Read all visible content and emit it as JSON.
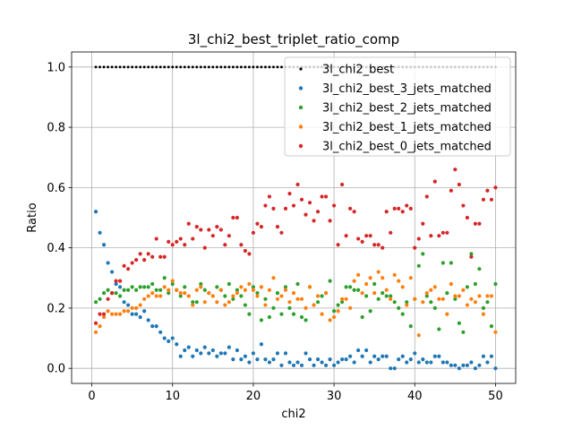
{
  "chart_data": {
    "type": "scatter",
    "title": "3l_chi2_best_triplet_ratio_comp",
    "xlabel": "chi2",
    "ylabel": "Ratio",
    "xlim": [
      -2.5,
      52.5
    ],
    "ylim": [
      -0.05,
      1.05
    ],
    "xticks": [
      0,
      10,
      20,
      30,
      40,
      50
    ],
    "yticks": [
      0.0,
      0.2,
      0.4,
      0.6,
      0.8,
      1.0
    ],
    "xtick_labels": [
      "0",
      "10",
      "20",
      "30",
      "40",
      "50"
    ],
    "ytick_labels": [
      "0.0",
      "0.2",
      "0.4",
      "0.6",
      "0.8",
      "1.0"
    ],
    "grid": true,
    "legend_position": "top-right",
    "x_start": 0.5,
    "x_step": 0.5,
    "series": [
      {
        "name": "3l_chi2_best",
        "color": "#000000",
        "values": [
          1,
          1,
          1,
          1,
          1,
          1,
          1,
          1,
          1,
          1,
          1,
          1,
          1,
          1,
          1,
          1,
          1,
          1,
          1,
          1,
          1,
          1,
          1,
          1,
          1,
          1,
          1,
          1,
          1,
          1,
          1,
          1,
          1,
          1,
          1,
          1,
          1,
          1,
          1,
          1,
          1,
          1,
          1,
          1,
          1,
          1,
          1,
          1,
          1,
          1,
          1,
          1,
          1,
          1,
          1,
          1,
          1,
          1,
          1,
          1,
          1,
          1,
          1,
          1,
          1,
          1,
          1,
          1,
          1,
          1,
          1,
          1,
          1,
          1,
          1,
          1,
          1,
          1,
          1,
          1,
          1,
          1,
          1,
          1,
          1,
          1,
          1,
          1,
          1,
          1,
          1,
          1,
          1,
          1,
          1,
          1,
          1,
          1,
          1,
          1
        ]
      },
      {
        "name": "3l_chi2_best_3_jets_matched",
        "color": "#1f77b4",
        "values": [
          0.52,
          0.45,
          0.41,
          0.35,
          0.32,
          0.28,
          0.27,
          0.22,
          0.21,
          0.18,
          0.18,
          0.17,
          0.19,
          0.16,
          0.14,
          0.14,
          0.12,
          0.1,
          0.09,
          0.1,
          0.08,
          0.04,
          0.06,
          0.07,
          0.04,
          0.06,
          0.05,
          0.07,
          0.05,
          0.06,
          0.04,
          0.05,
          0.05,
          0.07,
          0.03,
          0.06,
          0.03,
          0.04,
          0.02,
          0.05,
          0.03,
          0.08,
          0.03,
          0.02,
          0.03,
          0.05,
          0.01,
          0.05,
          0.02,
          0.01,
          0.02,
          0.01,
          0.05,
          0.03,
          0.01,
          0.03,
          0.02,
          0.01,
          0.03,
          0.01,
          0.02,
          0.03,
          0.03,
          0.04,
          0.02,
          0.06,
          0.04,
          0.06,
          0.02,
          0.04,
          0.03,
          0.04,
          0.04,
          0.0,
          0.0,
          0.03,
          0.04,
          0.02,
          0.03,
          0.05,
          0.02,
          0.03,
          0.02,
          0.02,
          0.04,
          0.04,
          0.02,
          0.02,
          0.01,
          0.01,
          0.0,
          0.01,
          0.01,
          0.02,
          0.0,
          0.01,
          0.04,
          0.02,
          0.04,
          0.0
        ]
      },
      {
        "name": "3l_chi2_best_2_jets_matched",
        "color": "#2ca02c",
        "values": [
          0.22,
          0.23,
          0.25,
          0.26,
          0.25,
          0.25,
          0.24,
          0.26,
          0.26,
          0.27,
          0.26,
          0.27,
          0.27,
          0.27,
          0.28,
          0.26,
          0.26,
          0.3,
          0.25,
          0.28,
          0.26,
          0.24,
          0.27,
          0.24,
          0.22,
          0.22,
          0.28,
          0.26,
          0.25,
          0.24,
          0.27,
          0.26,
          0.24,
          0.28,
          0.23,
          0.26,
          0.24,
          0.21,
          0.18,
          0.27,
          0.25,
          0.16,
          0.23,
          0.17,
          0.2,
          0.25,
          0.18,
          0.27,
          0.2,
          0.18,
          0.28,
          0.17,
          0.16,
          0.27,
          0.21,
          0.22,
          0.24,
          0.25,
          0.29,
          0.19,
          0.21,
          0.22,
          0.27,
          0.27,
          0.26,
          0.26,
          0.17,
          0.24,
          0.19,
          0.28,
          0.23,
          0.25,
          0.24,
          0.24,
          0.22,
          0.2,
          0.18,
          0.22,
          0.14,
          0.23,
          0.34,
          0.38,
          0.24,
          0.22,
          0.2,
          0.13,
          0.35,
          0.25,
          0.35,
          0.23,
          0.15,
          0.12,
          0.27,
          0.38,
          0.28,
          0.33,
          0.2,
          0.22,
          0.14,
          0.28
        ]
      },
      {
        "name": "3l_chi2_best_1_jets_matched",
        "color": "#ff7f0e",
        "values": [
          0.12,
          0.14,
          0.17,
          0.19,
          0.18,
          0.18,
          0.18,
          0.19,
          0.19,
          0.2,
          0.2,
          0.21,
          0.23,
          0.24,
          0.25,
          0.24,
          0.24,
          0.27,
          0.26,
          0.29,
          0.26,
          0.25,
          0.25,
          0.24,
          0.21,
          0.26,
          0.27,
          0.22,
          0.25,
          0.24,
          0.22,
          0.26,
          0.21,
          0.22,
          0.24,
          0.25,
          0.27,
          0.26,
          0.28,
          0.26,
          0.24,
          0.27,
          0.21,
          0.26,
          0.3,
          0.23,
          0.24,
          0.26,
          0.22,
          0.25,
          0.23,
          0.23,
          0.2,
          0.27,
          0.21,
          0.24,
          0.18,
          0.25,
          0.16,
          0.17,
          0.19,
          0.23,
          0.23,
          0.2,
          0.29,
          0.31,
          0.25,
          0.28,
          0.3,
          0.25,
          0.32,
          0.3,
          0.26,
          0.23,
          0.31,
          0.29,
          0.27,
          0.21,
          0.3,
          0.23,
          0.11,
          0.22,
          0.25,
          0.26,
          0.27,
          0.23,
          0.23,
          0.18,
          0.28,
          0.24,
          0.24,
          0.26,
          0.21,
          0.23,
          0.22,
          0.24,
          0.18,
          0.24,
          0.24,
          0.12
        ]
      },
      {
        "name": "3l_chi2_best_0_jets_matched",
        "color": "#d62728",
        "values": [
          0.15,
          0.18,
          0.18,
          0.23,
          0.25,
          0.29,
          0.29,
          0.34,
          0.33,
          0.35,
          0.36,
          0.38,
          0.36,
          0.38,
          0.37,
          0.43,
          0.37,
          0.37,
          0.42,
          0.41,
          0.42,
          0.43,
          0.41,
          0.48,
          0.43,
          0.47,
          0.46,
          0.4,
          0.46,
          0.44,
          0.47,
          0.46,
          0.41,
          0.44,
          0.5,
          0.5,
          0.41,
          0.39,
          0.38,
          0.45,
          0.48,
          0.47,
          0.54,
          0.57,
          0.53,
          0.47,
          0.45,
          0.53,
          0.58,
          0.54,
          0.61,
          0.56,
          0.51,
          0.55,
          0.49,
          0.52,
          0.57,
          0.57,
          0.49,
          0.54,
          0.41,
          0.61,
          0.44,
          0.53,
          0.52,
          0.43,
          0.42,
          0.44,
          0.44,
          0.41,
          0.41,
          0.4,
          0.52,
          0.45,
          0.53,
          0.53,
          0.52,
          0.54,
          0.53,
          0.4,
          0.43,
          0.48,
          0.57,
          0.44,
          0.62,
          0.44,
          0.45,
          0.45,
          0.59,
          0.66,
          0.61,
          0.54,
          0.5,
          0.37,
          0.48,
          0.48,
          0.56,
          0.59,
          0.56,
          0.6
        ]
      }
    ]
  }
}
